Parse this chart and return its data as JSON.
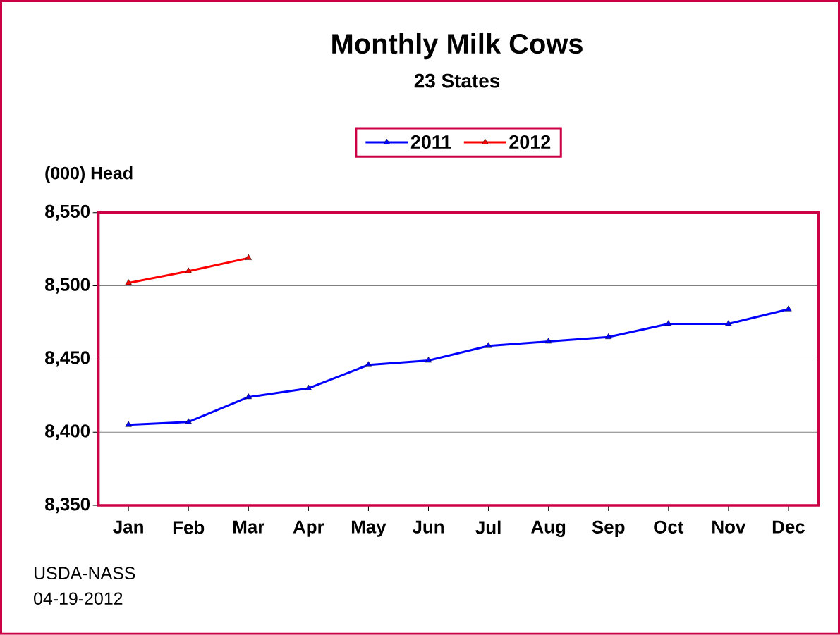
{
  "chart_data": {
    "type": "line",
    "title": "Monthly Milk Cows",
    "subtitle": "23 States",
    "ylabel": "(000) Head",
    "categories": [
      "Jan",
      "Feb",
      "Mar",
      "Apr",
      "May",
      "Jun",
      "Jul",
      "Aug",
      "Sep",
      "Oct",
      "Nov",
      "Dec"
    ],
    "series": [
      {
        "name": "2011",
        "color": "#0000ff",
        "values": [
          8405,
          8407,
          8424,
          8430,
          8446,
          8449,
          8459,
          8462,
          8465,
          8474,
          8474,
          8484
        ]
      },
      {
        "name": "2012",
        "color": "#ff0000",
        "values": [
          8502,
          8510,
          8519,
          null,
          null,
          null,
          null,
          null,
          null,
          null,
          null,
          null
        ]
      }
    ],
    "ylim": [
      8350,
      8550
    ],
    "yticks": [
      {
        "value": 8350,
        "label": "8,350"
      },
      {
        "value": 8400,
        "label": "8,400"
      },
      {
        "value": 8450,
        "label": "8,450"
      },
      {
        "value": 8500,
        "label": "8,500"
      },
      {
        "value": 8550,
        "label": "8,550"
      }
    ],
    "grid": "y",
    "legend": "top",
    "marker": "triangle",
    "line_style": "solid",
    "annotations": [
      "USDA-NASS",
      "04-19-2012"
    ]
  }
}
